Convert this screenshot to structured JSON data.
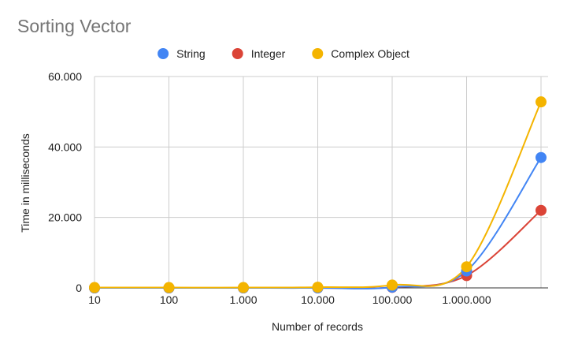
{
  "chart_data": {
    "type": "line",
    "title": "Sorting Vector",
    "xlabel": "Number of records",
    "ylabel": "Time in milliseconds",
    "categories": [
      "10",
      "100",
      "1.000",
      "10.000",
      "100.000",
      "1.000.000",
      ""
    ],
    "ytick_labels": [
      "0",
      "20.000",
      "40.000",
      "60.000"
    ],
    "ytick_values": [
      0,
      20000,
      40000,
      60000
    ],
    "ylim": [
      0,
      60000
    ],
    "grid": true,
    "legend": "top",
    "smooth": true,
    "series": [
      {
        "name": "String",
        "color": "#4285f4",
        "values": [
          0,
          0,
          0,
          0,
          200,
          4800,
          37000
        ]
      },
      {
        "name": "Integer",
        "color": "#db4437",
        "values": [
          0,
          0,
          0,
          0,
          150,
          3500,
          22000
        ]
      },
      {
        "name": "Complex Object",
        "color": "#f4b400",
        "values": [
          100,
          100,
          100,
          200,
          800,
          6000,
          52800
        ]
      }
    ]
  }
}
